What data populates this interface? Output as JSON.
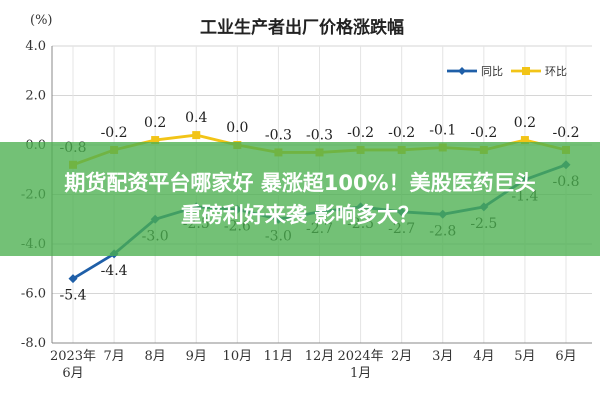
{
  "chart_data": {
    "type": "line",
    "title": "工业生产者出厂价格涨跌幅",
    "unit": "(%)",
    "ylim": [
      -8.0,
      4.0
    ],
    "yticks": [
      "4.0",
      "2.0",
      "0.0",
      "-2.0",
      "-4.0",
      "-6.0",
      "-8.0"
    ],
    "yticks_values": [
      4,
      2,
      0,
      -2,
      -4,
      -6,
      -8
    ],
    "categories": [
      [
        "2023年",
        "6月"
      ],
      [
        "7月"
      ],
      [
        "8月"
      ],
      [
        "9月"
      ],
      [
        "10月"
      ],
      [
        "11月"
      ],
      [
        "12月"
      ],
      [
        "2024年",
        "1月"
      ],
      [
        "2月"
      ],
      [
        "3月"
      ],
      [
        "4月"
      ],
      [
        "5月"
      ],
      [
        "6月"
      ]
    ],
    "grid": true,
    "legend_position": "top-right",
    "series": [
      {
        "name": "同比",
        "color": "#1f5fa8",
        "values": [
          -5.4,
          -4.4,
          -3.0,
          -2.5,
          -2.6,
          -3.0,
          -2.7,
          -2.5,
          -2.7,
          -2.8,
          -2.5,
          -1.4,
          -0.8
        ],
        "labels": [
          "-5.4",
          "-4.4",
          "-3.0",
          "-2.5",
          "-2.6",
          "-3.0",
          "-2.7",
          "-2.5",
          "-2.7",
          "-2.8",
          "-2.5",
          "-1.4",
          "-0.8"
        ]
      },
      {
        "name": "环比",
        "color": "#f2c417",
        "values": [
          -0.8,
          -0.2,
          0.2,
          0.4,
          0.0,
          -0.3,
          -0.3,
          -0.2,
          -0.2,
          -0.1,
          -0.2,
          0.2,
          -0.2
        ],
        "labels": [
          "-0.8",
          "-0.2",
          "0.2",
          "0.4",
          "0.0",
          "-0.3",
          "-0.3",
          "-0.2",
          "-0.2",
          "-0.1",
          "-0.2",
          "0.2",
          "-0.2"
        ]
      }
    ]
  },
  "overlay": {
    "line1": "期货配资平台哪家好 暴涨超100%！美股医药巨头",
    "line2": "重磅利好来袭 影响多大？",
    "color": "#4caf50"
  }
}
